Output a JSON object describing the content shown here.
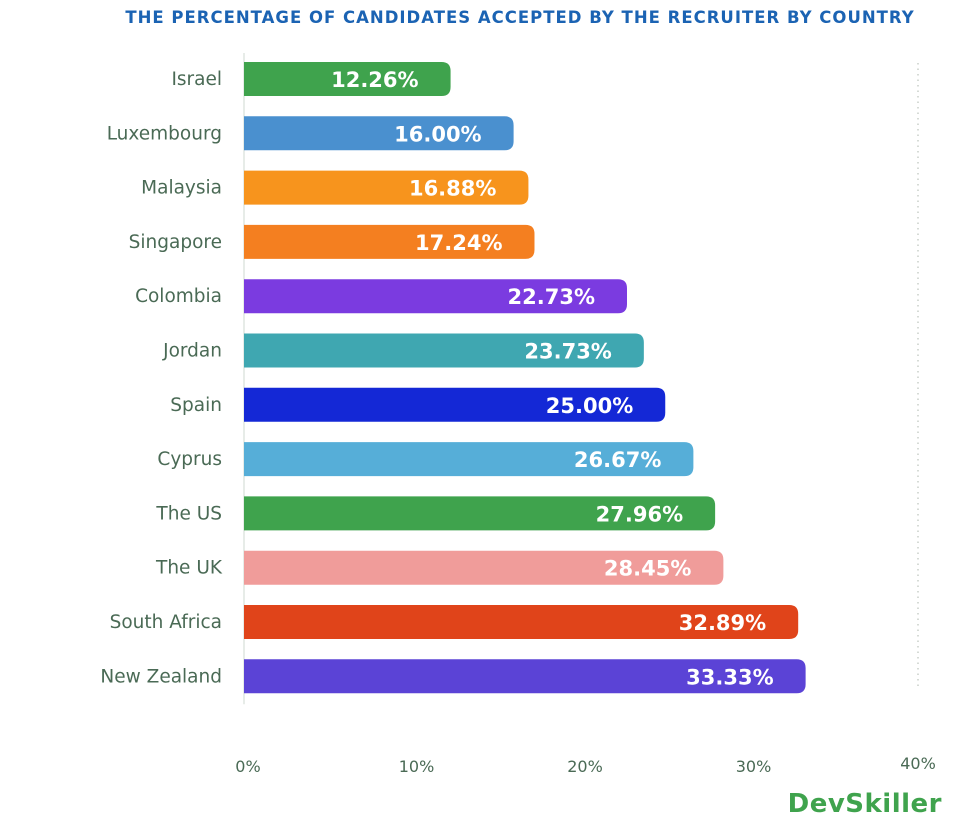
{
  "chart_data": {
    "type": "bar",
    "orientation": "horizontal",
    "title": "THE PERCENTAGE OF CANDIDATES ACCEPTED BY THE RECRUITER BY COUNTRY",
    "xlabel": "",
    "ylabel": "",
    "xlim": [
      0,
      40
    ],
    "x_ticks": [
      "0%",
      "10%",
      "20%",
      "30%",
      "40%"
    ],
    "categories": [
      "Israel",
      "Luxembourg",
      "Malaysia",
      "Singapore",
      "Colombia",
      "Jordan",
      "Spain",
      "Cyprus",
      "The US",
      "The UK",
      "South Africa",
      "New Zealand"
    ],
    "values": [
      12.26,
      16.0,
      16.88,
      17.24,
      22.73,
      23.73,
      25.0,
      26.67,
      27.96,
      28.45,
      32.89,
      33.33
    ],
    "value_labels": [
      "12.26%",
      "16.00%",
      "16.88%",
      "17.24%",
      "22.73%",
      "23.73%",
      "25.00%",
      "26.67%",
      "27.96%",
      "28.45%",
      "32.89%",
      "33.33%"
    ],
    "colors": [
      "#3fa34d",
      "#4a90cf",
      "#f7941d",
      "#f47f20",
      "#7b3be0",
      "#3fa7b1",
      "#1428d6",
      "#56aed8",
      "#3fa34d",
      "#f09c9a",
      "#e0441a",
      "#5b43d6"
    ],
    "grid": false,
    "legend": "none"
  },
  "brand": {
    "logo_text": "DevSkiller",
    "title_color": "#1b63b3",
    "logo_color": "#3fa34d",
    "label_color": "#4a6a55"
  }
}
